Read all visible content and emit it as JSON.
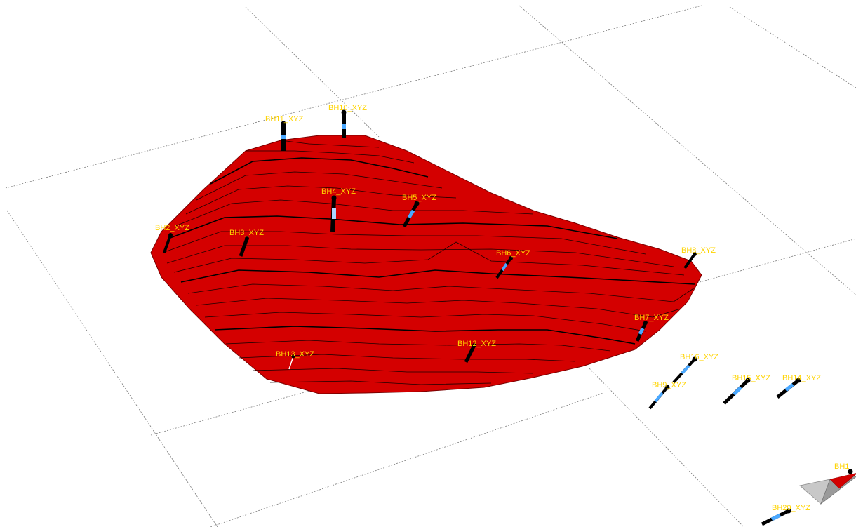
{
  "scene": {
    "surface_color": "#d40000",
    "label_color": "#ffd400",
    "borehole_colors": [
      "#000000",
      "#4aa8ff",
      "#ffffff"
    ]
  },
  "boreholes": [
    {
      "id": "bh11",
      "label": "BH11_XYZ"
    },
    {
      "id": "bh10",
      "label": "BH10_XYZ"
    },
    {
      "id": "bh4",
      "label": "BH4_XYZ"
    },
    {
      "id": "bh5",
      "label": "BH5_XYZ"
    },
    {
      "id": "bh2",
      "label": "BH2_XYZ"
    },
    {
      "id": "bh3",
      "label": "BH3_XYZ"
    },
    {
      "id": "bh6",
      "label": "BH6_XYZ"
    },
    {
      "id": "bh8",
      "label": "BH8_XYZ"
    },
    {
      "id": "bh7",
      "label": "BH7_XYZ"
    },
    {
      "id": "bh12",
      "label": "BH12_XYZ"
    },
    {
      "id": "bh13",
      "label": "BH13_XYZ"
    },
    {
      "id": "bh16",
      "label": "BH16_XYZ"
    },
    {
      "id": "bh9",
      "label": "BH9_XYZ"
    },
    {
      "id": "bh15",
      "label": "BH15_XYZ"
    },
    {
      "id": "bh14",
      "label": "BH14_XYZ"
    },
    {
      "id": "bh17",
      "label": "BH1"
    },
    {
      "id": "bh20",
      "label": "BH20_XYZ"
    }
  ]
}
